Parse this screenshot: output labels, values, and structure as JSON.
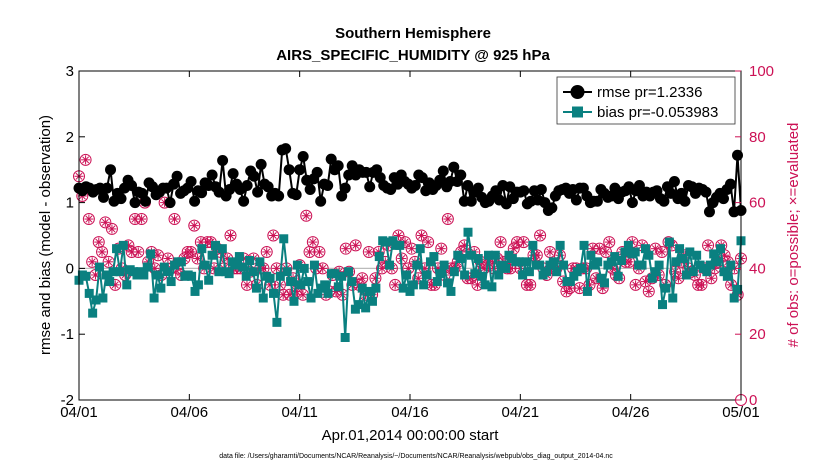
{
  "chart_data": {
    "type": "line",
    "title": "Southern Hemisphere",
    "subtitle": "AIRS_SPECIFIC_HUMIDITY @ 925 hPa",
    "xlabel": "Apr.01,2014 00:00:00 start",
    "ylabel": "rmse and bias (model - observation)",
    "ylabel_right": "# of obs: o=possible; ×=evaluated",
    "footer": "data file: /Users/gharamti/Documents/NCAR/Reanalysis/~/Documents/NCAR/Reanalysis/webpub/obs_diag_output_2014-04.nc",
    "xlim": [
      0,
      30
    ],
    "ylim": [
      -2,
      3
    ],
    "ylim_right": [
      0,
      100
    ],
    "x_ticks": [
      0,
      5,
      10,
      15,
      20,
      25,
      30
    ],
    "x_tick_labels": [
      "04/01",
      "04/06",
      "04/11",
      "04/16",
      "04/21",
      "04/26",
      "05/01"
    ],
    "y_ticks": [
      -2,
      -1,
      0,
      1,
      2,
      3
    ],
    "y_tick_labels": [
      "-2",
      "-1",
      "0",
      "1",
      "2",
      "3"
    ],
    "y_ticks_right": [
      0,
      20,
      40,
      60,
      80,
      100
    ],
    "y_tick_labels_right": [
      "0",
      "20",
      "40",
      "60",
      "80",
      "100"
    ],
    "colors": {
      "rmse": "#000000",
      "bias": "#0a8080",
      "obs": "#cc1155",
      "zero": "#bbbbbb"
    },
    "series": [
      {
        "name": "rmse",
        "legend": "rmse pr=1.2336",
        "values": [
          1.22,
          1.18,
          1.24,
          1.22,
          1.16,
          1.2,
          1.22,
          1.08,
          1.22,
          1.5,
          1.02,
          1.14,
          1.06,
          1.22,
          1.34,
          1.26,
          1.0,
          1.16,
          1.14,
          1.02,
          1.3,
          1.24,
          1.12,
          1.16,
          1.22,
          1.22,
          1.0,
          1.28,
          1.4,
          1.14,
          1.18,
          1.22,
          1.32,
          1.02,
          1.18,
          1.15,
          1.3,
          1.26,
          1.42,
          1.24,
          1.16,
          1.64,
          1.1,
          1.2,
          1.44,
          1.28,
          1.2,
          1.02,
          1.26,
          1.48,
          1.4,
          1.16,
          1.58,
          1.28,
          1.24,
          1.1,
          1.14,
          1.1,
          1.8,
          1.82,
          1.5,
          1.14,
          1.12,
          1.5,
          1.7,
          1.34,
          1.2,
          1.36,
          1.46,
          1.02,
          1.28,
          1.26,
          1.66,
          1.5,
          1.56,
          1.1,
          1.22,
          1.42,
          1.56,
          1.42,
          1.5,
          1.46,
          1.46,
          1.24,
          1.46,
          1.5,
          1.38,
          1.26,
          1.22,
          1.2,
          1.38,
          1.28,
          1.42,
          1.32,
          1.28,
          1.22,
          1.26,
          1.42,
          1.38,
          1.18,
          1.3,
          1.2,
          1.26,
          1.34,
          1.48,
          1.24,
          1.32,
          1.54,
          1.32,
          1.42,
          1.02,
          1.26,
          1.02,
          1.16,
          1.22,
          1.08,
          1.0,
          1.02,
          1.1,
          1.18,
          1.04,
          1.26,
          0.98,
          1.24,
          1.06,
          1.16,
          1.16,
          1.18,
          0.98,
          1.02,
          1.18,
          1.04,
          1.2,
          1.0,
          0.88,
          0.92,
          1.1,
          1.18,
          1.2,
          1.22,
          1.14,
          1.2,
          1.04,
          1.22,
          1.22,
          1.1,
          1.0,
          1.02,
          1.02,
          1.2,
          1.14,
          1.08,
          1.1,
          1.22,
          1.06,
          1.16,
          1.18,
          1.24,
          1.0,
          1.18,
          1.26,
          1.1,
          1.16,
          1.1,
          1.16,
          1.18,
          1.06,
          1.02,
          1.24,
          1.14,
          1.32,
          1.06,
          1.14,
          1.02,
          1.26,
          1.24,
          1.14,
          1.22,
          1.2,
          1.16,
          0.86,
          1.0,
          1.08,
          1.14,
          1.06,
          1.2,
          1.28,
          0.86,
          1.72,
          0.88
        ]
      },
      {
        "name": "bias",
        "legend": "bias pr=-0.053983",
        "values": [
          -0.18,
          -0.1,
          -0.12,
          -0.38,
          -0.68,
          -0.48,
          0.02,
          -0.45,
          -0.1,
          -0.2,
          -0.05,
          0.3,
          -0.05,
          0.35,
          -0.25,
          -0.02,
          -0.05,
          -0.1,
          -0.05,
          -0.1,
          0.02,
          0.22,
          -0.45,
          -0.1,
          -0.3,
          0.02,
          -0.05,
          -0.2,
          0.05,
          0.1,
          0.1,
          -0.12,
          -0.1,
          -0.12,
          -0.35,
          -0.25,
          0.3,
          0.05,
          -0.18,
          0.2,
          0.35,
          -0.05,
          0.3,
          -0.05,
          -0.08,
          0.1,
          0.05,
          0.18,
          0.02,
          -0.12,
          0.12,
          -0.05,
          -0.3,
          0.1,
          -0.45,
          -0.12,
          -0.15,
          -0.38,
          -0.82,
          -0.12,
          0.45,
          -0.05,
          -0.2,
          -0.5,
          0.05,
          -0.25,
          0.0,
          -0.2,
          -0.45,
          0.05,
          -0.38,
          -0.3,
          -0.25,
          -0.38,
          -0.08,
          -0.08,
          -0.28,
          -0.12,
          -1.05,
          -0.05,
          -0.2,
          -0.62,
          -0.55,
          -0.3,
          -0.6,
          -0.35,
          -0.5,
          -0.3,
          0.18,
          0.42,
          0.4,
          0.05,
          0.42,
          0.35,
          0.35,
          -0.3,
          -0.1,
          -0.35,
          -0.25,
          0.05,
          0.3,
          -0.25,
          -0.1,
          0.1,
          0.18,
          -0.2,
          -0.08,
          0.05,
          -0.22,
          -0.35,
          -0.05,
          0.2,
          0.15,
          -0.1,
          0.55,
          0.2,
          -0.08,
          0.15,
          -0.12,
          -0.25,
          0.2,
          -0.28,
          0.2,
          -0.1,
          0.05,
          0.0,
          0.2,
          0.15,
          0.1,
          0.1,
          -0.1,
          0.1,
          -0.05,
          0.35,
          0.05,
          0.05,
          -0.1,
          -0.05,
          0.05,
          0.1,
          -0.05,
          0.35,
          0.05,
          -0.2,
          -0.2,
          -0.12,
          -0.05,
          0.0,
          0.35,
          -0.35,
          0.2,
          0.05,
          0.1,
          -0.15,
          -0.22,
          0.05,
          0.1,
          0.18,
          -0.12,
          0.12,
          0.25,
          0.35,
          0.22,
          0.25,
          0.05,
          0.05,
          0.3,
          0.2,
          -0.15,
          -0.05,
          0.05,
          -0.55,
          -0.3,
          0.4,
          -0.45,
          0.1,
          0.3,
          0.15,
          -0.1,
          0.25,
          -0.05,
          0.2,
          0.05,
          0.0,
          -0.05,
          0.05,
          0.22,
          0.1,
          0.3,
          -0.05,
          -0.12,
          0.05,
          -0.45,
          -0.32,
          0.42
        ]
      }
    ],
    "obs_possible": [
      68,
      62,
      73,
      55,
      42,
      38,
      48,
      45,
      54,
      42,
      52,
      35,
      46,
      40,
      38,
      47,
      45,
      55,
      45,
      55,
      60,
      42,
      45,
      40,
      44,
      38,
      60,
      43,
      40,
      55,
      40,
      38,
      43,
      45,
      45,
      53,
      43,
      48,
      40,
      48,
      48,
      40,
      46,
      45,
      40,
      43,
      50,
      40,
      40,
      40,
      43,
      35,
      39,
      43,
      35,
      40,
      40,
      45,
      35,
      50,
      40,
      35,
      32,
      40,
      32,
      37,
      33,
      41,
      32,
      56,
      45,
      48,
      40,
      45,
      40,
      32,
      33,
      38,
      33,
      39,
      32,
      46,
      39,
      35,
      47,
      35,
      37,
      32,
      45,
      32,
      37,
      45,
      40,
      42,
      47,
      40,
      35,
      50,
      43,
      48,
      40,
      46,
      42,
      37,
      50,
      40,
      48,
      35,
      35,
      40,
      46,
      38,
      55,
      40,
      40,
      42,
      45,
      47,
      37,
      37,
      45,
      35,
      42,
      40,
      41,
      43,
      40,
      43,
      48,
      42,
      40,
      40,
      46,
      48,
      40,
      48,
      35,
      35,
      44,
      44,
      50,
      40,
      38,
      45,
      40,
      40,
      44,
      36,
      33,
      34,
      40,
      40,
      34,
      40,
      40,
      35,
      46,
      37,
      46,
      34,
      45,
      48,
      40,
      38,
      37,
      45,
      42,
      42,
      48,
      35,
      40,
      47,
      36,
      33,
      37,
      46,
      38,
      45,
      35,
      48,
      47,
      39,
      37,
      42,
      44,
      40,
      39,
      38,
      35,
      35,
      40,
      47,
      37,
      40,
      42,
      47,
      44,
      42,
      35,
      40,
      32,
      43
    ]
  }
}
